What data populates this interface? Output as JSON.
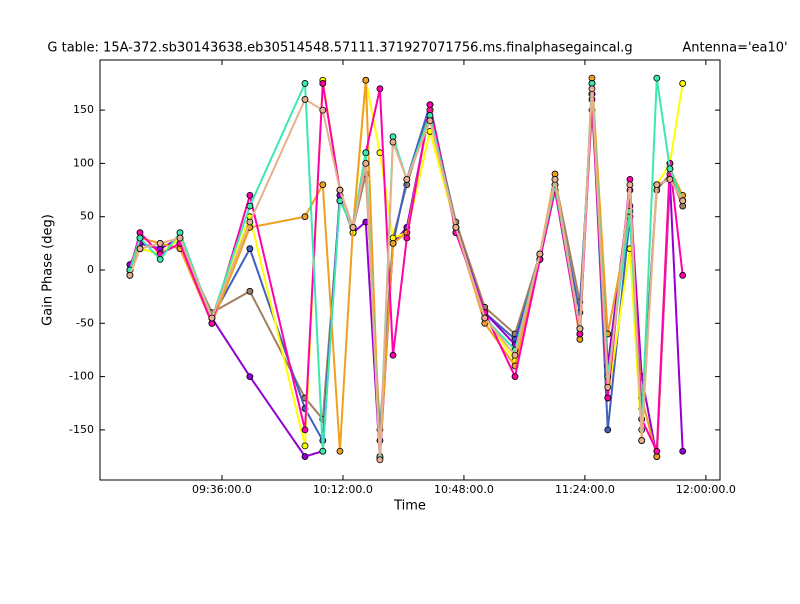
{
  "chart_data": {
    "type": "line",
    "title": "G table: 15A-372.sb30143638.eb30514548.57111.371927071756.ms.finalphasegaincal.g",
    "subtitle": "Antenna='ea10'",
    "x_label": "Time",
    "y_label": "Gain Phase (deg)",
    "x": [
      548.6,
      551.6,
      557.6,
      563.5,
      573.0,
      584.3,
      600.7,
      606.0,
      611.1,
      615.0,
      618.8,
      623.0,
      626.9,
      631.0,
      637.9,
      645.6,
      654.2,
      663.2,
      670.6,
      675.1,
      682.5,
      686.1,
      690.8,
      697.4,
      700.9,
      705.4,
      709.3,
      713.1
    ],
    "series": [
      {
        "color": "#a08060",
        "values": [
          0,
          20,
          15,
          25,
          -40,
          -20,
          -120,
          -140,
          65,
          40,
          90,
          -150,
          30,
          80,
          150,
          45,
          -35,
          -60,
          15,
          85,
          -30,
          150,
          -90,
          60,
          -130,
          75,
          90,
          60
        ]
      },
      {
        "color": "#4060c0",
        "values": [
          0,
          25,
          20,
          30,
          -45,
          20,
          -130,
          -160,
          70,
          40,
          100,
          -160,
          25,
          85,
          155,
          40,
          -40,
          -65,
          10,
          75,
          -40,
          165,
          -150,
          50,
          -140,
          80,
          85,
          65
        ]
      },
      {
        "color": "#9400d3",
        "values": [
          5,
          25,
          20,
          30,
          -45,
          -100,
          -175,
          -170,
          70,
          35,
          45,
          -177,
          25,
          40,
          150,
          40,
          -40,
          -70,
          10,
          75,
          -55,
          165,
          -90,
          75,
          -100,
          -175,
          85,
          -170
        ]
      },
      {
        "color": "#ffff00",
        "values": [
          0,
          20,
          15,
          30,
          -45,
          50,
          -165,
          178,
          75,
          35,
          178,
          110,
          30,
          35,
          130,
          40,
          -45,
          -85,
          10,
          80,
          -60,
          175,
          -120,
          20,
          -160,
          80,
          100,
          175
        ]
      },
      {
        "color": "#f0a020",
        "values": [
          -5,
          30,
          25,
          20,
          -50,
          40,
          50,
          80,
          -170,
          40,
          178,
          -175,
          25,
          35,
          150,
          40,
          -50,
          -90,
          15,
          90,
          -65,
          180,
          -60,
          50,
          -120,
          -175,
          95,
          70
        ]
      },
      {
        "color": "#ff00aa",
        "values": [
          0,
          35,
          15,
          25,
          -50,
          70,
          -150,
          175,
          75,
          40,
          110,
          170,
          -80,
          30,
          155,
          35,
          -40,
          -100,
          10,
          75,
          -60,
          160,
          -120,
          85,
          -140,
          -170,
          100,
          -5
        ]
      },
      {
        "color": "#3be8b0",
        "values": [
          0,
          30,
          10,
          35,
          -45,
          60,
          175,
          -170,
          65,
          40,
          110,
          -175,
          125,
          85,
          145,
          40,
          -45,
          -75,
          15,
          80,
          -55,
          175,
          -100,
          55,
          -150,
          180,
          95,
          65
        ]
      },
      {
        "color": "#e8b090",
        "values": [
          -5,
          20,
          25,
          30,
          -45,
          45,
          160,
          150,
          75,
          40,
          100,
          -178,
          120,
          85,
          140,
          40,
          -45,
          -80,
          15,
          85,
          -55,
          170,
          -110,
          80,
          -160,
          80,
          85,
          65
        ]
      }
    ],
    "xlim": [
      539.7,
      724.2
    ],
    "ylim": [
      -197,
      197
    ],
    "xticks": [
      {
        "value": 576,
        "label": "09:36:00.0"
      },
      {
        "value": 612,
        "label": "10:12:00.0"
      },
      {
        "value": 648,
        "label": "10:48:00.0"
      },
      {
        "value": 684,
        "label": "11:24:00.0"
      },
      {
        "value": 720,
        "label": "12:00:00.0"
      }
    ],
    "yticks": [
      -150,
      -100,
      -50,
      0,
      50,
      100,
      150
    ]
  }
}
